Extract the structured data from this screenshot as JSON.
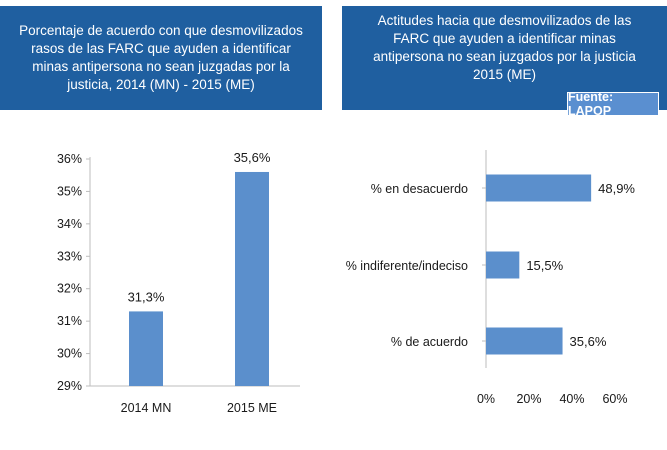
{
  "source_label": "Fuente: LAPOP",
  "chart_data": [
    {
      "type": "bar",
      "title": "Porcentaje de acuerdo con que desmovilizados rasos de las FARC que ayuden a identificar minas antipersona no sean juzgadas por la justicia, 2014 (MN) - 2015 (ME)",
      "categories": [
        "2014 MN",
        "2015 ME"
      ],
      "values": [
        31.3,
        35.6
      ],
      "value_labels": [
        "31,3%",
        "35,6%"
      ],
      "ylim": [
        29,
        36
      ],
      "yticks": [
        29,
        30,
        31,
        32,
        33,
        34,
        35,
        36
      ],
      "ytick_labels": [
        "29%",
        "30%",
        "31%",
        "32%",
        "33%",
        "34%",
        "35%",
        "36%"
      ],
      "color": "#5b8fcc",
      "grid": false
    },
    {
      "type": "bar",
      "orientation": "horizontal",
      "title": "Actitudes hacia que desmovilizados de las FARC que ayuden a identificar minas antipersona no sean juzgados por la justicia 2015 (ME)",
      "categories": [
        "% en desacuerdo",
        "% indiferente/indeciso",
        "% de acuerdo"
      ],
      "values": [
        48.9,
        15.5,
        35.6
      ],
      "value_labels": [
        "48,9%",
        "15,5%",
        "35,6%"
      ],
      "xlim": [
        0,
        60
      ],
      "xticks": [
        0,
        20,
        40,
        60
      ],
      "xtick_labels": [
        "0%",
        "20%",
        "40%",
        "60%"
      ],
      "color": "#5b8fcc",
      "grid": false
    }
  ]
}
